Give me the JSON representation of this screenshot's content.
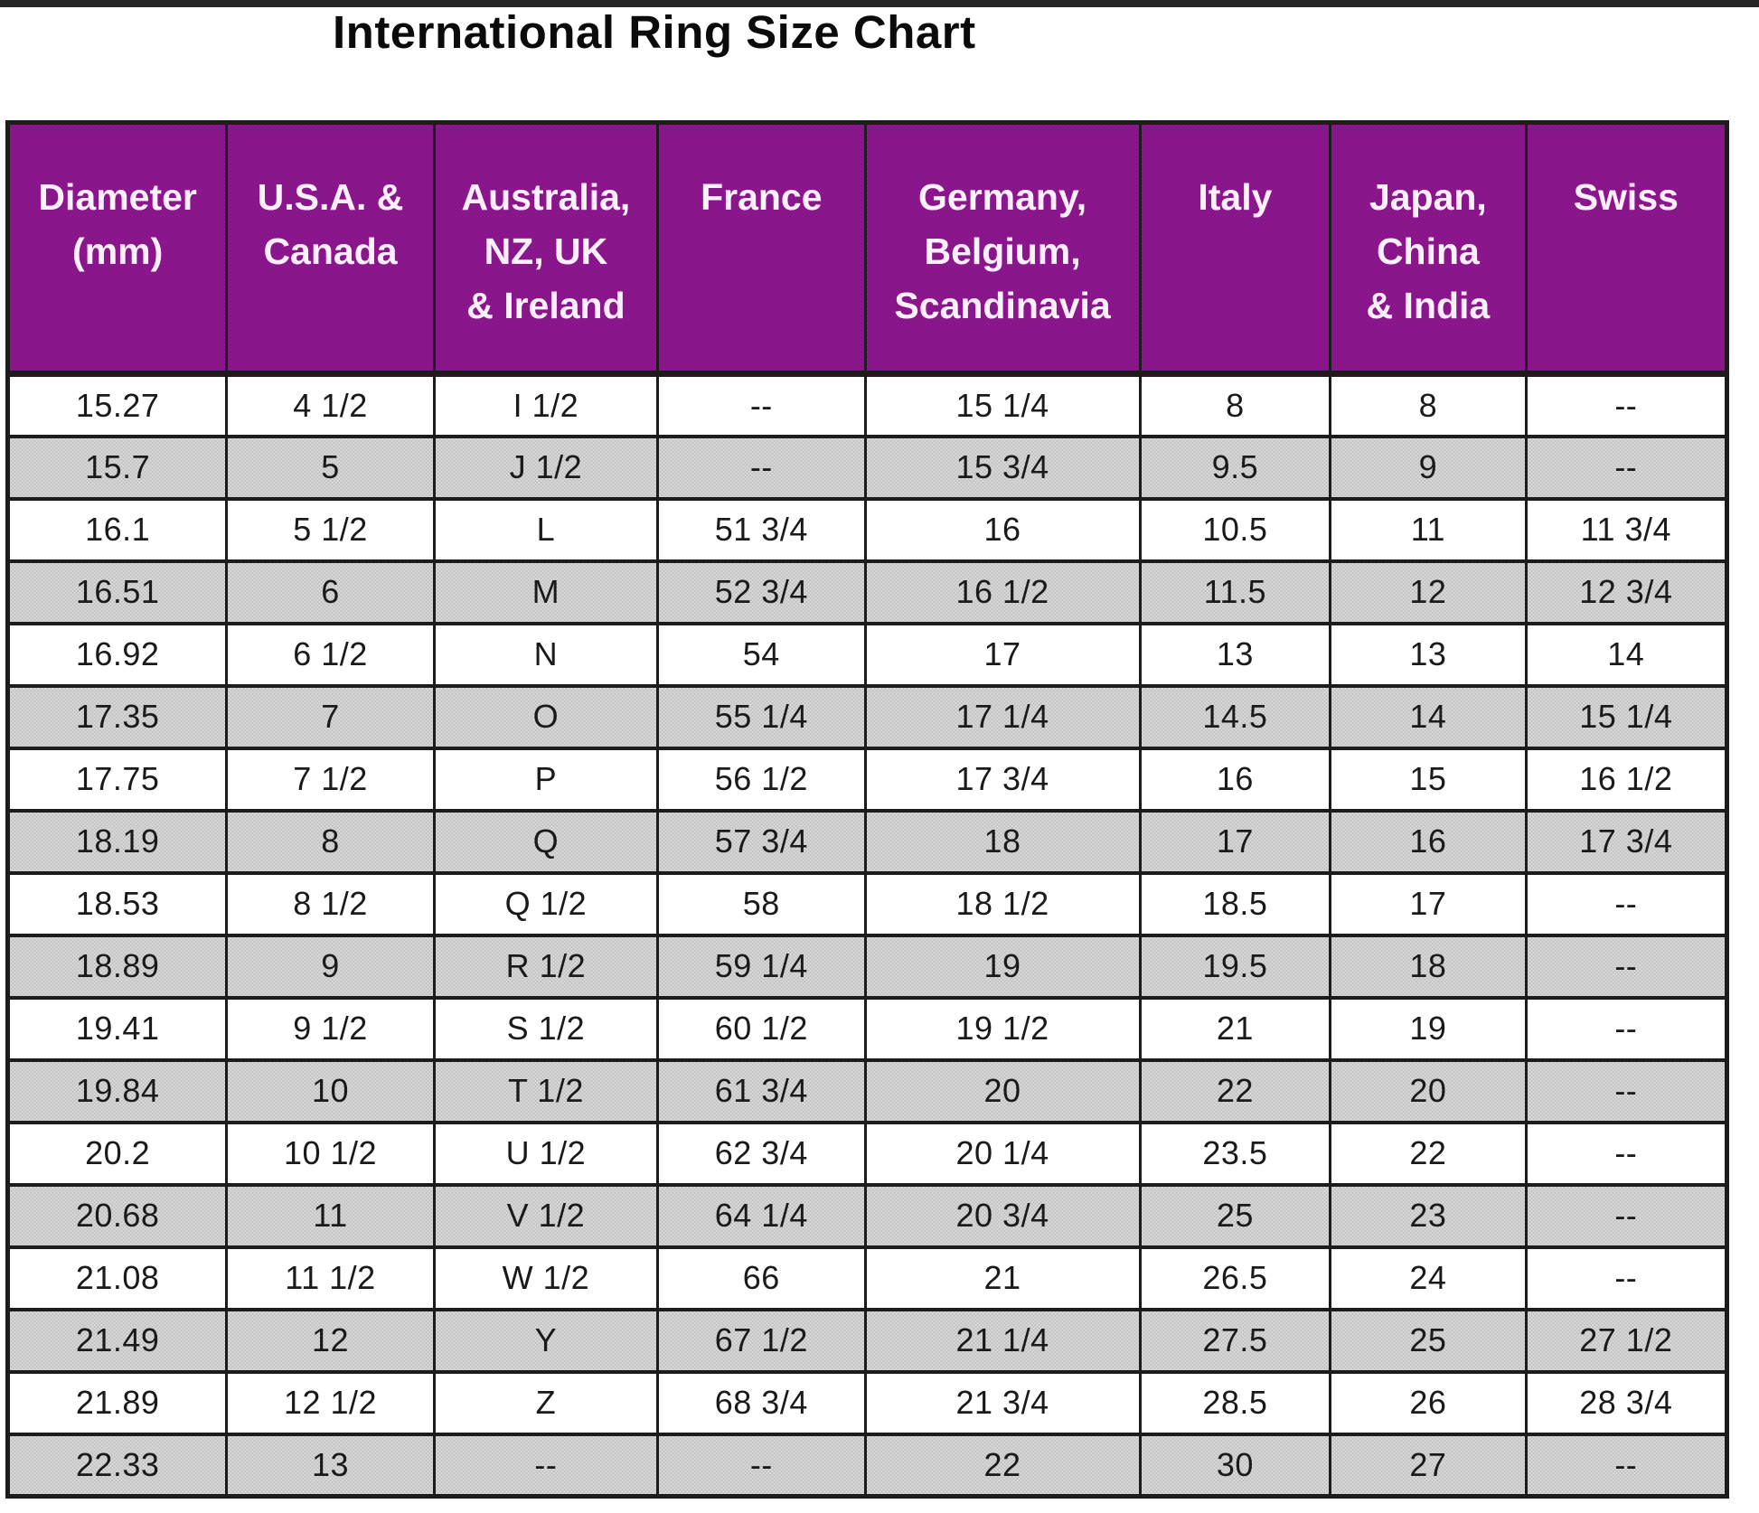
{
  "title": "International Ring Size Chart",
  "colors": {
    "header_bg": "#8b118b",
    "header_text": "#fdeffd",
    "row_alt_bg": "#c9c9c9",
    "row_bg": "#ffffff",
    "border": "#1c1c1c",
    "text": "#1a1a1a"
  },
  "table": {
    "headers": [
      "Diameter\n(mm)",
      "U.S.A. &\nCanada",
      "Australia,\nNZ, UK\n& Ireland",
      "France",
      "Germany,\nBelgium,\nScandinavia",
      "Italy",
      "Japan,\nChina\n& India",
      "Swiss"
    ],
    "rows": [
      [
        "15.27",
        "4 1/2",
        "I 1/2",
        "--",
        "15 1/4",
        "8",
        "8",
        "--"
      ],
      [
        "15.7",
        "5",
        "J 1/2",
        "--",
        "15 3/4",
        "9.5",
        "9",
        "--"
      ],
      [
        "16.1",
        "5 1/2",
        "L",
        "51 3/4",
        "16",
        "10.5",
        "11",
        "11 3/4"
      ],
      [
        "16.51",
        "6",
        "M",
        "52 3/4",
        "16 1/2",
        "11.5",
        "12",
        "12 3/4"
      ],
      [
        "16.92",
        "6 1/2",
        "N",
        "54",
        "17",
        "13",
        "13",
        "14"
      ],
      [
        "17.35",
        "7",
        "O",
        "55 1/4",
        "17 1/4",
        "14.5",
        "14",
        "15 1/4"
      ],
      [
        "17.75",
        "7 1/2",
        "P",
        "56 1/2",
        "17 3/4",
        "16",
        "15",
        "16 1/2"
      ],
      [
        "18.19",
        "8",
        "Q",
        "57 3/4",
        "18",
        "17",
        "16",
        "17 3/4"
      ],
      [
        "18.53",
        "8 1/2",
        "Q 1/2",
        "58",
        "18 1/2",
        "18.5",
        "17",
        "--"
      ],
      [
        "18.89",
        "9",
        "R 1/2",
        "59 1/4",
        "19",
        "19.5",
        "18",
        "--"
      ],
      [
        "19.41",
        "9 1/2",
        "S 1/2",
        "60 1/2",
        "19 1/2",
        "21",
        "19",
        "--"
      ],
      [
        "19.84",
        "10",
        "T 1/2",
        "61 3/4",
        "20",
        "22",
        "20",
        "--"
      ],
      [
        "20.2",
        "10 1/2",
        "U 1/2",
        "62 3/4",
        "20 1/4",
        "23.5",
        "22",
        "--"
      ],
      [
        "20.68",
        "11",
        "V 1/2",
        "64 1/4",
        "20 3/4",
        "25",
        "23",
        "--"
      ],
      [
        "21.08",
        "11 1/2",
        "W 1/2",
        "66",
        "21",
        "26.5",
        "24",
        "--"
      ],
      [
        "21.49",
        "12",
        "Y",
        "67 1/2",
        "21 1/4",
        "27.5",
        "25",
        "27 1/2"
      ],
      [
        "21.89",
        "12 1/2",
        "Z",
        "68 3/4",
        "21 3/4",
        "28.5",
        "26",
        "28 3/4"
      ],
      [
        "22.33",
        "13",
        "--",
        "--",
        "22",
        "30",
        "27",
        "--"
      ]
    ]
  }
}
